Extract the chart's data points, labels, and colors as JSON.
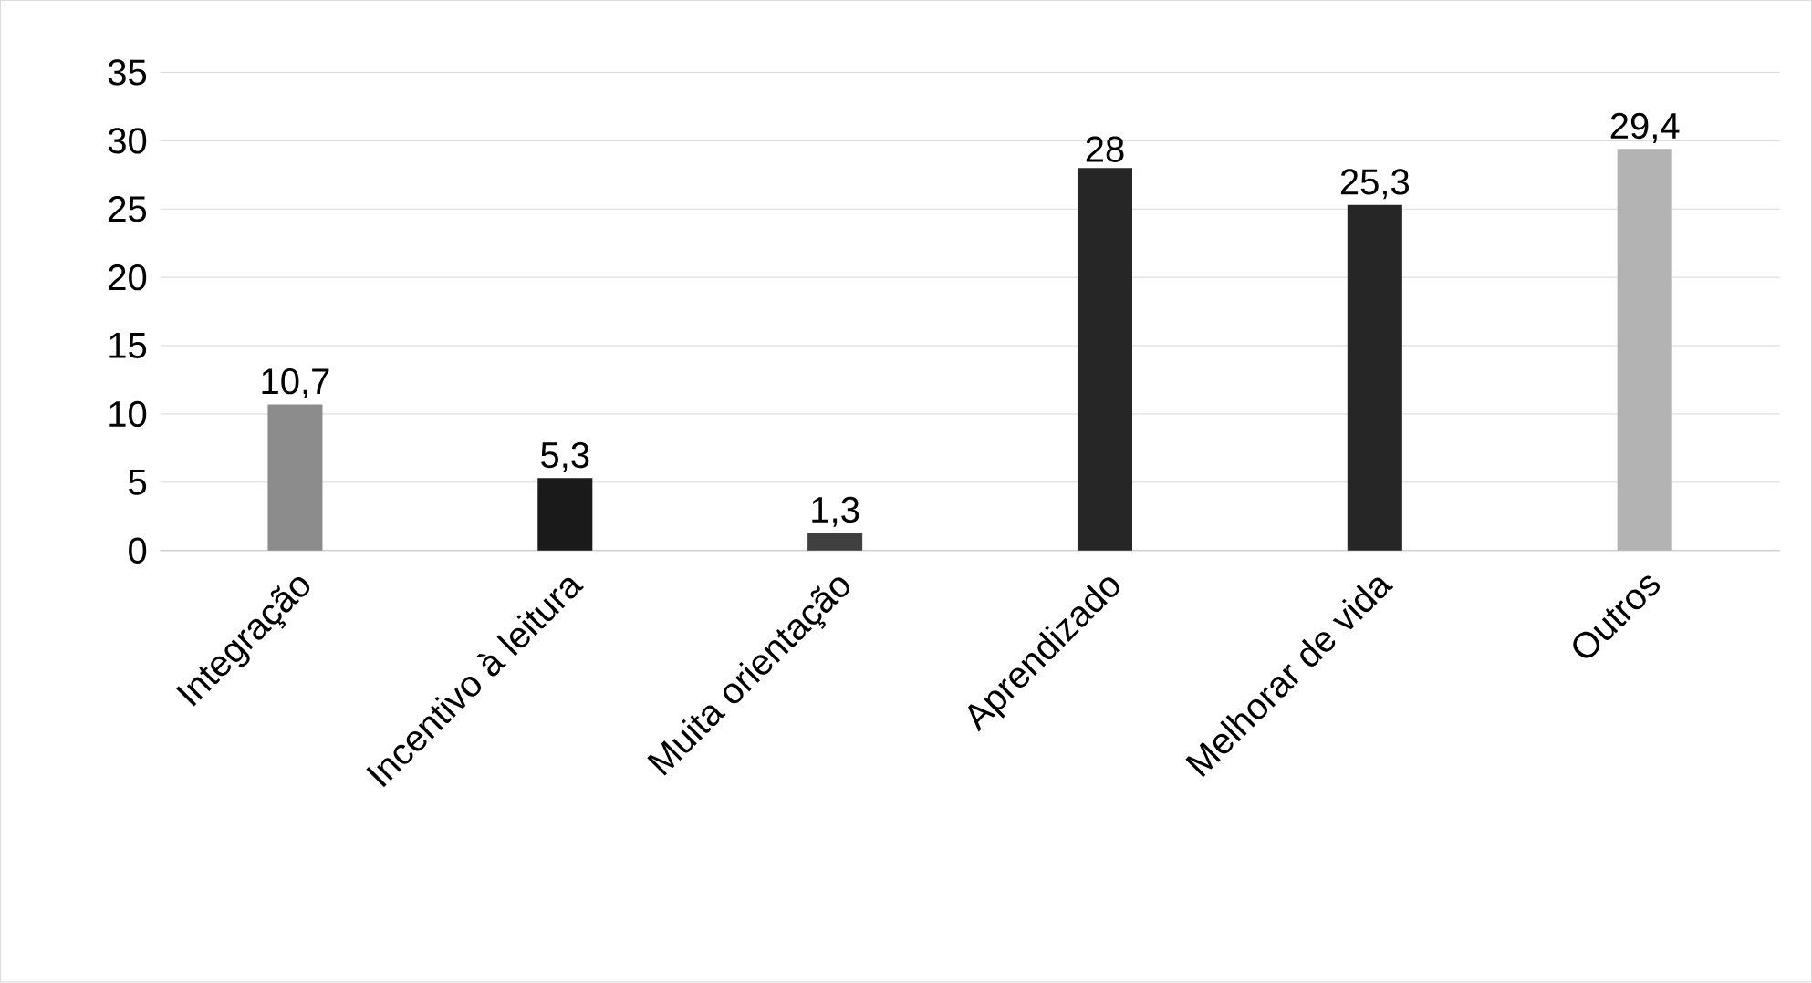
{
  "chart_data": {
    "type": "bar",
    "categories": [
      "Integração",
      "Incentivo à leitura",
      "Muita orientação",
      "Aprendizado",
      "Melhorar de vida",
      "Outros"
    ],
    "values": [
      10.7,
      5.3,
      1.3,
      28,
      25.3,
      29.4
    ],
    "value_labels": [
      "10,7",
      "5,3",
      "1,3",
      "28",
      "25,3",
      "29,4"
    ],
    "colors": [
      "#8c8c8c",
      "#1a1a1a",
      "#404040",
      "#262626",
      "#262626",
      "#b3b3b3"
    ],
    "ylim": [
      0,
      35
    ],
    "yticks": [
      0,
      5,
      10,
      15,
      20,
      25,
      30,
      35
    ],
    "grid": "y"
  }
}
